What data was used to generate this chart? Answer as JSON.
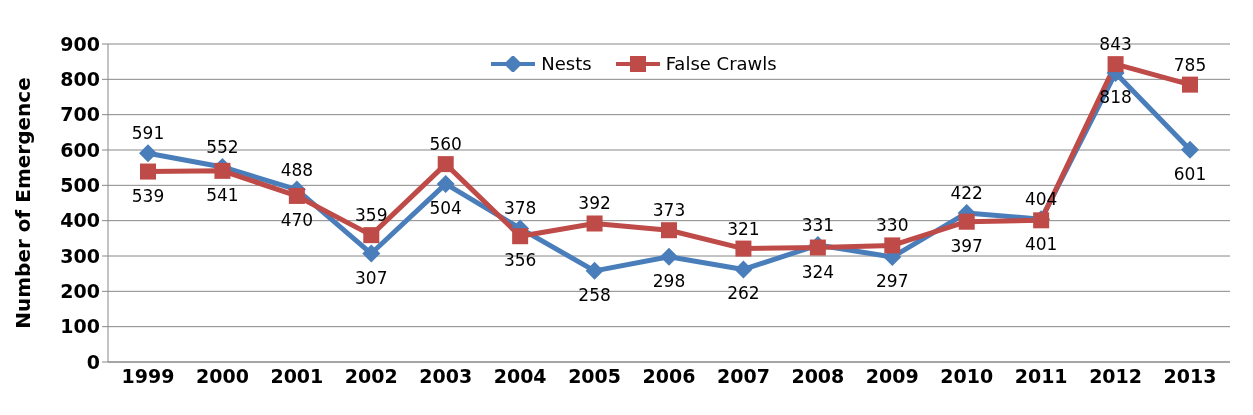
{
  "chart_data": {
    "type": "line",
    "ylabel": "Number of Emergence",
    "categories": [
      "1999",
      "2000",
      "2001",
      "2002",
      "2003",
      "2004",
      "2005",
      "2006",
      "2007",
      "2008",
      "2009",
      "2010",
      "2011",
      "2012",
      "2013"
    ],
    "series": [
      {
        "name": "Nests",
        "color": "#4a7ebb",
        "marker": "diamond",
        "values": [
          591,
          552,
          488,
          307,
          504,
          378,
          258,
          298,
          262,
          331,
          297,
          422,
          404,
          818,
          601
        ]
      },
      {
        "name": "False Crawls",
        "color": "#be4b48",
        "marker": "square",
        "values": [
          539,
          541,
          470,
          359,
          560,
          356,
          392,
          373,
          321,
          324,
          330,
          397,
          401,
          843,
          785
        ]
      }
    ],
    "ylim": [
      0,
      900
    ],
    "yticks": [
      0,
      100,
      200,
      300,
      400,
      500,
      600,
      700,
      800,
      900
    ],
    "grid": "y",
    "legend": "top",
    "data_labels": true
  }
}
